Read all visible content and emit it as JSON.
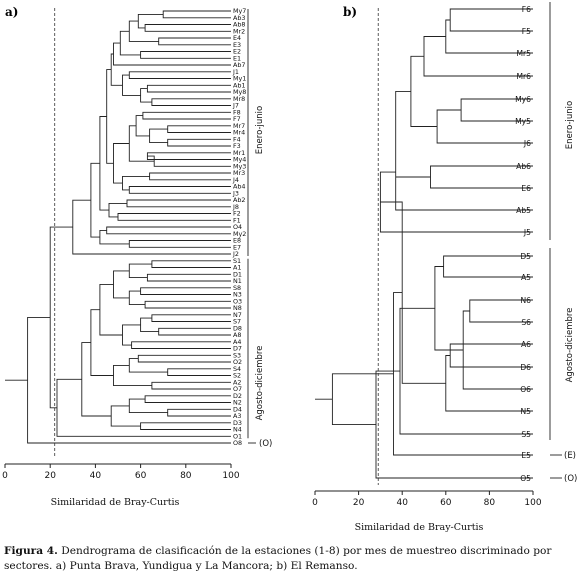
{
  "panel_a": {
    "tag": "a)",
    "axis_title": "Similaridad de Bray-Curtis",
    "ticks": [
      "0",
      "20",
      "40",
      "60",
      "80",
      "100"
    ],
    "group_labels": [
      "Enero-junio",
      "Agosto-diciembre",
      "(O)"
    ],
    "leaves": [
      "My7",
      "Ab3",
      "Ab8",
      "Mr2",
      "E4",
      "E3",
      "E2",
      "E1",
      "Ab7",
      "J1",
      "My1",
      "Ab1",
      "My8",
      "Mr8",
      "J7",
      "F8",
      "F7",
      "Mr7",
      "Mr4",
      "F4",
      "F3",
      "Mr1",
      "My4",
      "My3",
      "Mr3",
      "J4",
      "Ab4",
      "J3",
      "Ab2",
      "J8",
      "F2",
      "F1",
      "O4",
      "My2",
      "E8",
      "E7",
      "J2",
      "S1",
      "A1",
      "D1",
      "N1",
      "S8",
      "N3",
      "O3",
      "N8",
      "N7",
      "S7",
      "D8",
      "A8",
      "A4",
      "D7",
      "S3",
      "O2",
      "S4",
      "S2",
      "A2",
      "O7",
      "D2",
      "N2",
      "D4",
      "A3",
      "D3",
      "N4",
      "O1",
      "O8"
    ]
  },
  "panel_b": {
    "tag": "b)",
    "axis_title": "Similaridad de Bray-Curtis",
    "ticks": [
      "0",
      "20",
      "40",
      "60",
      "80",
      "100"
    ],
    "group_labels": [
      "Enero-junio",
      "Agosto-diciembre",
      "(E)",
      "(O)"
    ],
    "leaves": [
      "F6",
      "F5",
      "Mr5",
      "Mr6",
      "My6",
      "My5",
      "J6",
      "Ab6",
      "E6",
      "Ab5",
      "J5",
      "D5",
      "A5",
      "N6",
      "S6",
      "A6",
      "D6",
      "O6",
      "N5",
      "S5",
      "E5",
      "O5"
    ]
  },
  "caption": {
    "fig": "Figura 4.",
    "text": "Dendrograma de clasificación de la estaciones (1-8) por mes de muestreo discriminado por sectores. a) Punta Brava, Yundigua y La Mancora; b) El Remanso."
  }
}
